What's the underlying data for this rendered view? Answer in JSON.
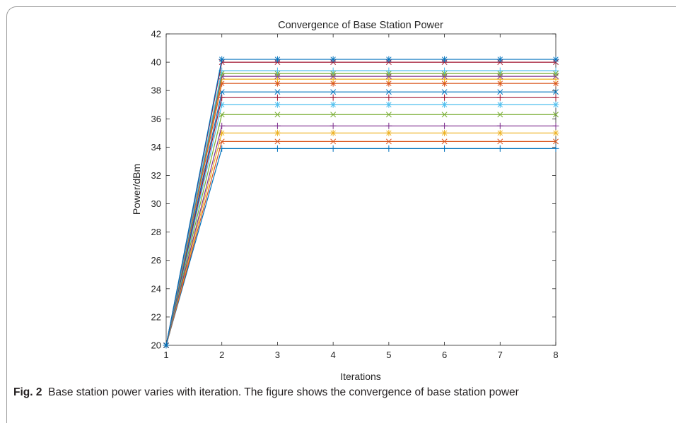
{
  "chart_data": {
    "type": "line",
    "title": "Convergence of Base Station Power",
    "xlabel": "Iterations",
    "ylabel": "Power/dBm",
    "xlim": [
      1,
      8
    ],
    "ylim": [
      20,
      42
    ],
    "xticks": [
      1,
      2,
      3,
      4,
      5,
      6,
      7,
      8
    ],
    "yticks": [
      20,
      22,
      24,
      26,
      28,
      30,
      32,
      34,
      36,
      38,
      40,
      42
    ],
    "grid": false,
    "x": [
      1,
      2,
      3,
      4,
      5,
      6,
      7,
      8
    ],
    "series": [
      {
        "color": "#0072bd",
        "marker": "+",
        "values": [
          20,
          33.9,
          33.9,
          33.9,
          33.9,
          33.9,
          33.9,
          33.9
        ]
      },
      {
        "color": "#d95319",
        "marker": "x",
        "values": [
          20,
          34.4,
          34.4,
          34.4,
          34.4,
          34.4,
          34.4,
          34.4
        ]
      },
      {
        "color": "#edb120",
        "marker": "*",
        "values": [
          20,
          35.0,
          35.0,
          35.0,
          35.0,
          35.0,
          35.0,
          35.0
        ]
      },
      {
        "color": "#7e2f8e",
        "marker": "+",
        "values": [
          20,
          35.5,
          35.5,
          35.5,
          35.5,
          35.5,
          35.5,
          35.5
        ]
      },
      {
        "color": "#77ac30",
        "marker": "x",
        "values": [
          20,
          36.3,
          36.3,
          36.3,
          36.3,
          36.3,
          36.3,
          36.3
        ]
      },
      {
        "color": "#4dbeee",
        "marker": "*",
        "values": [
          20,
          37.0,
          37.0,
          37.0,
          37.0,
          37.0,
          37.0,
          37.0
        ]
      },
      {
        "color": "#a2142f",
        "marker": "+",
        "values": [
          20,
          37.5,
          37.5,
          37.5,
          37.5,
          37.5,
          37.5,
          37.5
        ]
      },
      {
        "color": "#0072bd",
        "marker": "x",
        "values": [
          20,
          37.9,
          37.9,
          37.9,
          37.9,
          37.9,
          37.9,
          37.9
        ]
      },
      {
        "color": "#d95319",
        "marker": "*",
        "values": [
          20,
          38.5,
          38.5,
          38.5,
          38.5,
          38.5,
          38.5,
          38.5
        ]
      },
      {
        "color": "#edb120",
        "marker": "+",
        "values": [
          20,
          38.8,
          38.8,
          38.8,
          38.8,
          38.8,
          38.8,
          38.8
        ]
      },
      {
        "color": "#7e2f8e",
        "marker": "x",
        "values": [
          20,
          39.0,
          39.0,
          39.0,
          39.0,
          39.0,
          39.0,
          39.0
        ]
      },
      {
        "color": "#77ac30",
        "marker": "*",
        "values": [
          20,
          39.2,
          39.2,
          39.2,
          39.2,
          39.2,
          39.2,
          39.2
        ]
      },
      {
        "color": "#4dbeee",
        "marker": "+",
        "values": [
          20,
          39.4,
          39.4,
          39.4,
          39.4,
          39.4,
          39.4,
          39.4
        ]
      },
      {
        "color": "#a2142f",
        "marker": "x",
        "values": [
          20,
          40.0,
          40.0,
          40.0,
          40.0,
          40.0,
          40.0,
          40.0
        ]
      },
      {
        "color": "#0072bd",
        "marker": "*",
        "values": [
          20,
          40.2,
          40.2,
          40.2,
          40.2,
          40.2,
          40.2,
          40.2
        ]
      }
    ]
  },
  "caption": {
    "label": "Fig. 2",
    "text": "Base station power varies with iteration. The figure shows the convergence of base station power"
  }
}
